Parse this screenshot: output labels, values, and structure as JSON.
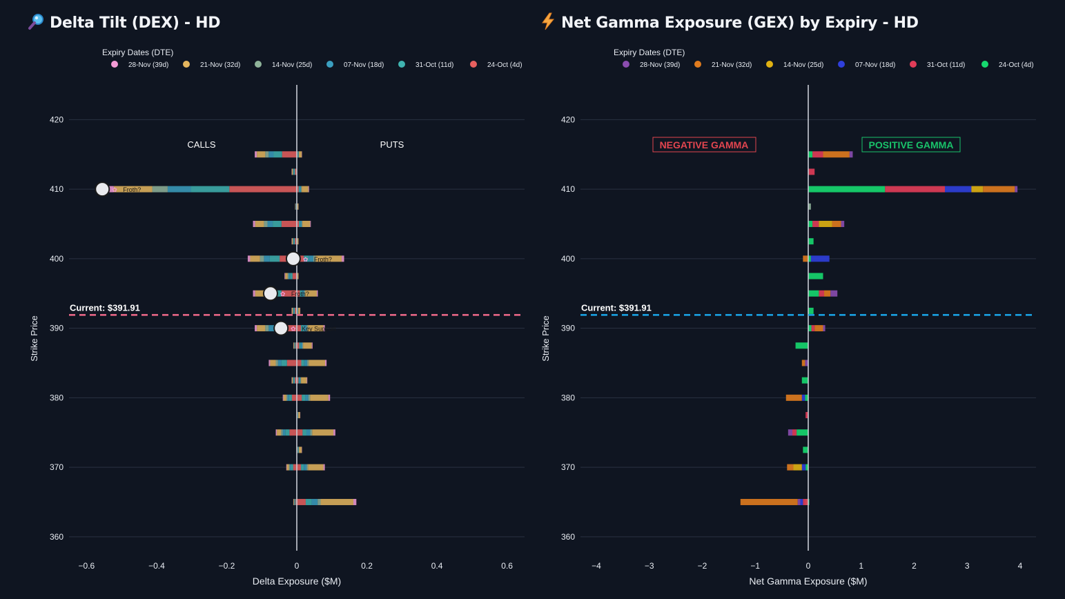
{
  "panels": [
    {
      "title": "Delta Tilt (DEX) - HD",
      "icon": "magnifier-icon"
    },
    {
      "title": "Net Gamma Exposure (GEX) by Expiry - HD",
      "icon": "lightning-icon"
    }
  ],
  "chart_data": [
    {
      "type": "bar",
      "orientation": "horizontal",
      "stacked": true,
      "title": "Delta Tilt (DEX) - HD",
      "xlabel": "Delta Exposure ($M)",
      "ylabel": "Strike Price",
      "xlim": [
        -0.65,
        0.65
      ],
      "ylim": [
        358,
        425
      ],
      "xticks": [
        -0.6,
        -0.4,
        -0.2,
        0,
        0.2,
        0.4,
        0.6
      ],
      "xtick_labels": [
        "−0.6",
        "−0.4",
        "−0.2",
        "0",
        "0.2",
        "0.4",
        "0.6"
      ],
      "yticks": [
        360,
        370,
        380,
        390,
        400,
        410,
        420
      ],
      "legend_title": "Expiry Dates (DTE)",
      "legend": [
        {
          "name": "28-Nov (39d)",
          "color": "#f39bd6"
        },
        {
          "name": "21-Nov (32d)",
          "color": "#e5b65e"
        },
        {
          "name": "14-Nov (25d)",
          "color": "#8fb39a"
        },
        {
          "name": "07-Nov (18d)",
          "color": "#3b9fc0"
        },
        {
          "name": "31-Oct (11d)",
          "color": "#3fb3b0"
        },
        {
          "name": "24-Oct (4d)",
          "color": "#e8605f"
        }
      ],
      "annotations": {
        "left_label": "CALLS",
        "right_label": "PUTS"
      },
      "current_price": {
        "value": 391.91,
        "label": "Current: $391.91",
        "color": "#f06a8a"
      },
      "bars": [
        {
          "strike": 365,
          "left": -0.01,
          "right": 0.17
        },
        {
          "strike": 370,
          "left": -0.03,
          "right": 0.08
        },
        {
          "strike": 372.5,
          "left": 0,
          "right": 0.015
        },
        {
          "strike": 375,
          "left": -0.06,
          "right": 0.11
        },
        {
          "strike": 377.5,
          "left": 0,
          "right": 0.01
        },
        {
          "strike": 380,
          "left": -0.04,
          "right": 0.095
        },
        {
          "strike": 382.5,
          "left": -0.015,
          "right": 0.03
        },
        {
          "strike": 385,
          "left": -0.08,
          "right": 0.085
        },
        {
          "strike": 387.5,
          "left": -0.01,
          "right": 0.045
        },
        {
          "strike": 390,
          "left": -0.12,
          "right": 0.08
        },
        {
          "strike": 392.5,
          "left": -0.015,
          "right": 0.01
        },
        {
          "strike": 395,
          "left": -0.125,
          "right": 0.06
        },
        {
          "strike": 397.5,
          "left": -0.035,
          "right": 0.005
        },
        {
          "strike": 400,
          "left": -0.14,
          "right": 0.135
        },
        {
          "strike": 402.5,
          "left": -0.015,
          "right": 0.005
        },
        {
          "strike": 405,
          "left": -0.125,
          "right": 0.04
        },
        {
          "strike": 407.5,
          "left": -0.005,
          "right": 0.005
        },
        {
          "strike": 410,
          "left": -0.55,
          "right": 0.035
        },
        {
          "strike": 412.5,
          "left": -0.015,
          "right": 0
        },
        {
          "strike": 415,
          "left": -0.12,
          "right": 0.015
        }
      ],
      "markers": [
        {
          "strike": 410,
          "x": -0.555,
          "text": "Froth?"
        },
        {
          "strike": 400,
          "x": -0.01,
          "text": "Froth?"
        },
        {
          "strike": 395,
          "x": -0.075,
          "text": "Froth?"
        },
        {
          "strike": 390,
          "x": -0.045,
          "text": "Key Support"
        }
      ]
    },
    {
      "type": "bar",
      "orientation": "horizontal",
      "stacked": true,
      "title": "Net Gamma Exposure (GEX) by Expiry - HD",
      "xlabel": "Net Gamma Exposure ($M)",
      "ylabel": "Strike Price",
      "xlim": [
        -4.3,
        4.3
      ],
      "ylim": [
        358,
        425
      ],
      "xticks": [
        -4,
        -3,
        -2,
        -1,
        0,
        1,
        2,
        3,
        4
      ],
      "xtick_labels": [
        "−4",
        "−3",
        "−2",
        "−1",
        "0",
        "1",
        "2",
        "3",
        "4"
      ],
      "yticks": [
        360,
        370,
        380,
        390,
        400,
        410,
        420
      ],
      "legend_title": "Expiry Dates (DTE)",
      "legend": [
        {
          "name": "28-Nov (39d)",
          "color": "#8b4db0"
        },
        {
          "name": "21-Nov (32d)",
          "color": "#e07b1e"
        },
        {
          "name": "14-Nov (25d)",
          "color": "#e0b112"
        },
        {
          "name": "07-Nov (18d)",
          "color": "#2f3fdc"
        },
        {
          "name": "31-Oct (11d)",
          "color": "#e23c58"
        },
        {
          "name": "24-Oct (4d)",
          "color": "#16d96f"
        }
      ],
      "annotations": {
        "negative_label": "NEGATIVE GAMMA",
        "positive_label": "POSITIVE GAMMA"
      },
      "current_price": {
        "value": 391.91,
        "label": "Current: $391.91",
        "color": "#1aa7ea"
      },
      "bars": [
        {
          "strike": 365,
          "segments": [
            [
              -0.05,
              0.02,
              "#16d96f"
            ],
            [
              -0.1,
              0,
              "#e23c58"
            ],
            [
              -0.15,
              -0.1,
              "#2f3fdc"
            ],
            [
              -0.2,
              -0.15,
              "#8b4db0"
            ],
            [
              -1.28,
              -0.2,
              "#e07b1e"
            ]
          ]
        },
        {
          "strike": 370,
          "segments": [
            [
              -0.05,
              0,
              "#16d96f"
            ],
            [
              -0.12,
              -0.05,
              "#2f3fdc"
            ],
            [
              -0.28,
              -0.12,
              "#e0b112"
            ],
            [
              -0.4,
              -0.28,
              "#e07b1e"
            ]
          ]
        },
        {
          "strike": 372.5,
          "segments": [
            [
              -0.1,
              0,
              "#16d96f"
            ]
          ]
        },
        {
          "strike": 375,
          "segments": [
            [
              -0.22,
              0,
              "#16d96f"
            ],
            [
              -0.3,
              -0.22,
              "#e23c58"
            ],
            [
              -0.38,
              -0.3,
              "#8b4db0"
            ]
          ]
        },
        {
          "strike": 377.5,
          "segments": [
            [
              -0.05,
              0,
              "#e23c58"
            ]
          ]
        },
        {
          "strike": 380,
          "segments": [
            [
              -0.06,
              0,
              "#16d96f"
            ],
            [
              -0.12,
              -0.06,
              "#2f3fdc"
            ],
            [
              -0.42,
              -0.12,
              "#e07b1e"
            ]
          ]
        },
        {
          "strike": 382.5,
          "segments": [
            [
              -0.12,
              0,
              "#16d96f"
            ]
          ]
        },
        {
          "strike": 385,
          "segments": [
            [
              -0.06,
              0,
              "#8b4db0"
            ],
            [
              -0.12,
              -0.06,
              "#e07b1e"
            ]
          ]
        },
        {
          "strike": 387.5,
          "segments": [
            [
              -0.24,
              0,
              "#16d96f"
            ]
          ]
        },
        {
          "strike": 390,
          "segments": [
            [
              0,
              0.06,
              "#16d96f"
            ],
            [
              0.06,
              0.12,
              "#e23c58"
            ],
            [
              0.12,
              0.28,
              "#e07b1e"
            ],
            [
              0.28,
              0.32,
              "#8b4db0"
            ]
          ]
        },
        {
          "strike": 392.5,
          "segments": [
            [
              0,
              0.1,
              "#16d96f"
            ]
          ]
        },
        {
          "strike": 395,
          "segments": [
            [
              0,
              0.2,
              "#16d96f"
            ],
            [
              0.2,
              0.3,
              "#e23c58"
            ],
            [
              0.3,
              0.42,
              "#e07b1e"
            ],
            [
              0.42,
              0.55,
              "#8b4db0"
            ]
          ]
        },
        {
          "strike": 397.5,
          "segments": [
            [
              0,
              0.28,
              "#16d96f"
            ]
          ]
        },
        {
          "strike": 400,
          "segments": [
            [
              0,
              0.05,
              "#16d96f"
            ],
            [
              0.05,
              0.4,
              "#2f3fdc"
            ],
            [
              -0.1,
              0,
              "#e07b1e"
            ]
          ]
        },
        {
          "strike": 402.5,
          "segments": [
            [
              0,
              0.1,
              "#16d96f"
            ]
          ]
        },
        {
          "strike": 405,
          "segments": [
            [
              0,
              0.08,
              "#16d96f"
            ],
            [
              0.08,
              0.2,
              "#e23c58"
            ],
            [
              0.2,
              0.45,
              "#e0b112"
            ],
            [
              0.45,
              0.62,
              "#e07b1e"
            ],
            [
              0.62,
              0.68,
              "#8b4db0"
            ]
          ]
        },
        {
          "strike": 407.5,
          "segments": [
            [
              0,
              0.05,
              "#8fb39a"
            ]
          ]
        },
        {
          "strike": 410,
          "segments": [
            [
              0,
              1.45,
              "#16d96f"
            ],
            [
              1.45,
              2.58,
              "#e23c58"
            ],
            [
              2.58,
              3.08,
              "#2f3fdc"
            ],
            [
              3.08,
              3.3,
              "#e0b112"
            ],
            [
              3.3,
              3.9,
              "#e07b1e"
            ],
            [
              3.9,
              3.95,
              "#8b4db0"
            ]
          ]
        },
        {
          "strike": 412.5,
          "segments": [
            [
              0,
              0.12,
              "#e23c58"
            ]
          ]
        },
        {
          "strike": 415,
          "segments": [
            [
              0,
              0.08,
              "#16d96f"
            ],
            [
              0.08,
              0.28,
              "#e23c58"
            ],
            [
              0.28,
              0.78,
              "#e07b1e"
            ],
            [
              0.78,
              0.84,
              "#8b4db0"
            ]
          ]
        }
      ]
    }
  ]
}
